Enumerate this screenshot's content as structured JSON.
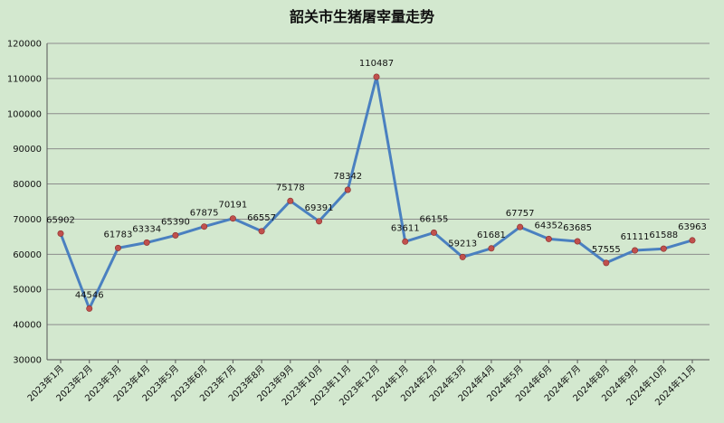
{
  "chart_data": {
    "type": "line",
    "title": "韶关市生猪屠宰量走势",
    "xlabel": "",
    "ylabel": "",
    "ylim": [
      30000,
      120000
    ],
    "y_ticks": [
      30000,
      40000,
      50000,
      60000,
      70000,
      80000,
      90000,
      100000,
      110000,
      120000
    ],
    "grid": true,
    "categories": [
      "2023年1月",
      "2023年2月",
      "2023年3月",
      "2023年4月",
      "2023年5月",
      "2023年6月",
      "2023年7月",
      "2023年8月",
      "2023年9月",
      "2023年10月",
      "2023年11月",
      "2023年12月",
      "2024年1月",
      "2024年2月",
      "2024年3月",
      "2024年4月",
      "2024年5月",
      "2024年6月",
      "2024年7月",
      "2024年8月",
      "2024年9月",
      "2024年10月",
      "2024年11月"
    ],
    "values": [
      65902,
      44546,
      61783,
      63334,
      65390,
      67875,
      70191,
      66557,
      75178,
      69391,
      78342,
      110487,
      63611,
      66155,
      59213,
      61681,
      67757,
      64352,
      63685,
      57555,
      61111,
      61588,
      63963
    ],
    "colors": {
      "background": "#d3e8cf",
      "line": "#4a80c0",
      "marker": "#c0504d",
      "grid": "#8c8c8c",
      "axis": "#555555"
    }
  }
}
